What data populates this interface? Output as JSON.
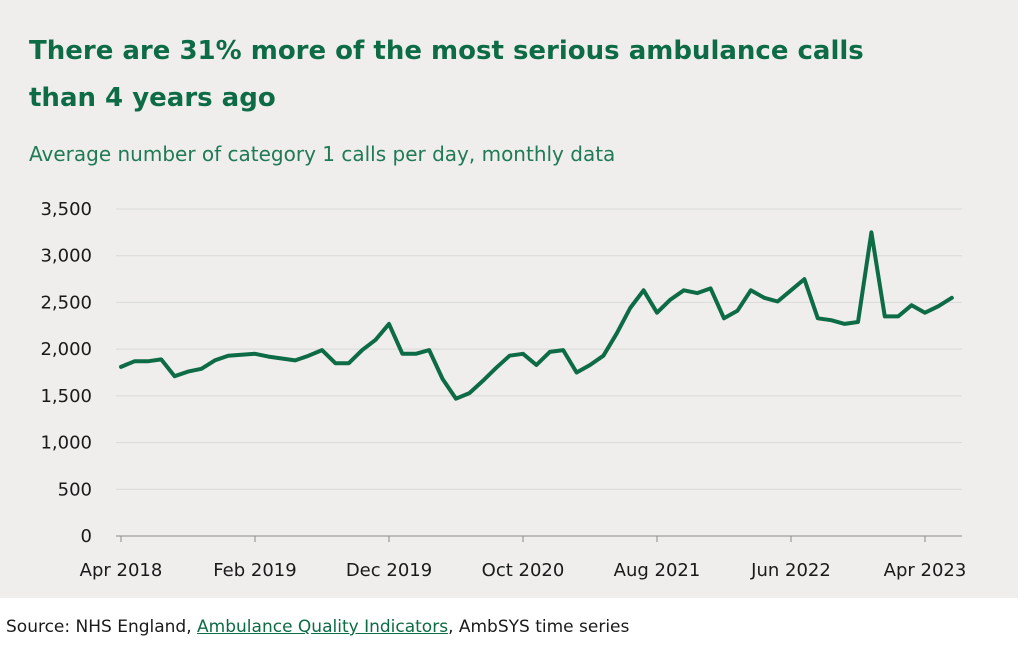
{
  "title": "There are 31% more of the most serious ambulance calls than 4 years ago",
  "subtitle": "Average number of category 1 calls per day, monthly data",
  "source": {
    "prefix": "Source: NHS England, ",
    "link": "Ambulance Quality Indicators",
    "suffix": ", AmbSYS time series"
  },
  "colors": {
    "line": "#0d6b45",
    "title": "#0d6b45",
    "background": "#efeeec",
    "grid": "#d9d9d9"
  },
  "chart_data": {
    "type": "line",
    "title": "There are 31% more of the most serious ambulance calls than 4 years ago",
    "subtitle": "Average number of category 1 calls per day, monthly data",
    "xlabel": "",
    "ylabel": "",
    "ylim": [
      0,
      3500
    ],
    "yticks": [
      0,
      500,
      1000,
      1500,
      2000,
      2500,
      3000,
      3500
    ],
    "ytick_labels": [
      "0",
      "500",
      "1,000",
      "1,500",
      "2,000",
      "2,500",
      "3,000",
      "3,500"
    ],
    "xtick_labels": [
      "Apr 2018",
      "Feb 2019",
      "Dec 2019",
      "Oct 2020",
      "Aug 2021",
      "Jun 2022",
      "Apr 2023"
    ],
    "xtick_dates": [
      "2018-04",
      "2019-02",
      "2019-12",
      "2020-10",
      "2021-08",
      "2022-06",
      "2023-04"
    ],
    "grid": true,
    "legend": "none",
    "series": [
      {
        "x": [
          "2018-04",
          "2018-05",
          "2018-06",
          "2018-07",
          "2018-08",
          "2018-09",
          "2018-10",
          "2018-11",
          "2018-12",
          "2019-01",
          "2019-02",
          "2019-03",
          "2019-04",
          "2019-05",
          "2019-06",
          "2019-07",
          "2019-08",
          "2019-09",
          "2019-10",
          "2019-11",
          "2019-12",
          "2020-01",
          "2020-02",
          "2020-03",
          "2020-04",
          "2020-05",
          "2020-06",
          "2020-07",
          "2020-08",
          "2020-09",
          "2020-10",
          "2020-11",
          "2020-12",
          "2021-01",
          "2021-02",
          "2021-03",
          "2021-04",
          "2021-05",
          "2021-06",
          "2021-07",
          "2021-08",
          "2021-09",
          "2021-10",
          "2021-11",
          "2021-12",
          "2022-01",
          "2022-02",
          "2022-03",
          "2022-04",
          "2022-05",
          "2022-06",
          "2022-07",
          "2022-08",
          "2022-09",
          "2022-10",
          "2022-11",
          "2022-12",
          "2023-01",
          "2023-02",
          "2023-03",
          "2023-04",
          "2023-05",
          "2023-06"
        ],
        "values": [
          1810,
          1870,
          1870,
          1890,
          1710,
          1760,
          1790,
          1880,
          1930,
          1940,
          1950,
          1920,
          1900,
          1880,
          1930,
          1990,
          1850,
          1850,
          1990,
          2100,
          2270,
          1950,
          1950,
          1990,
          1680,
          1470,
          1530,
          1660,
          1800,
          1930,
          1950,
          1830,
          1970,
          1990,
          1750,
          1830,
          1930,
          2170,
          2440,
          2630,
          2390,
          2530,
          2630,
          2600,
          2650,
          2330,
          2410,
          2630,
          2550,
          2510,
          2630,
          2750,
          2330,
          2310,
          2270,
          2290,
          3250,
          2350,
          2350,
          2470,
          2390,
          2460,
          2550
        ]
      }
    ]
  }
}
